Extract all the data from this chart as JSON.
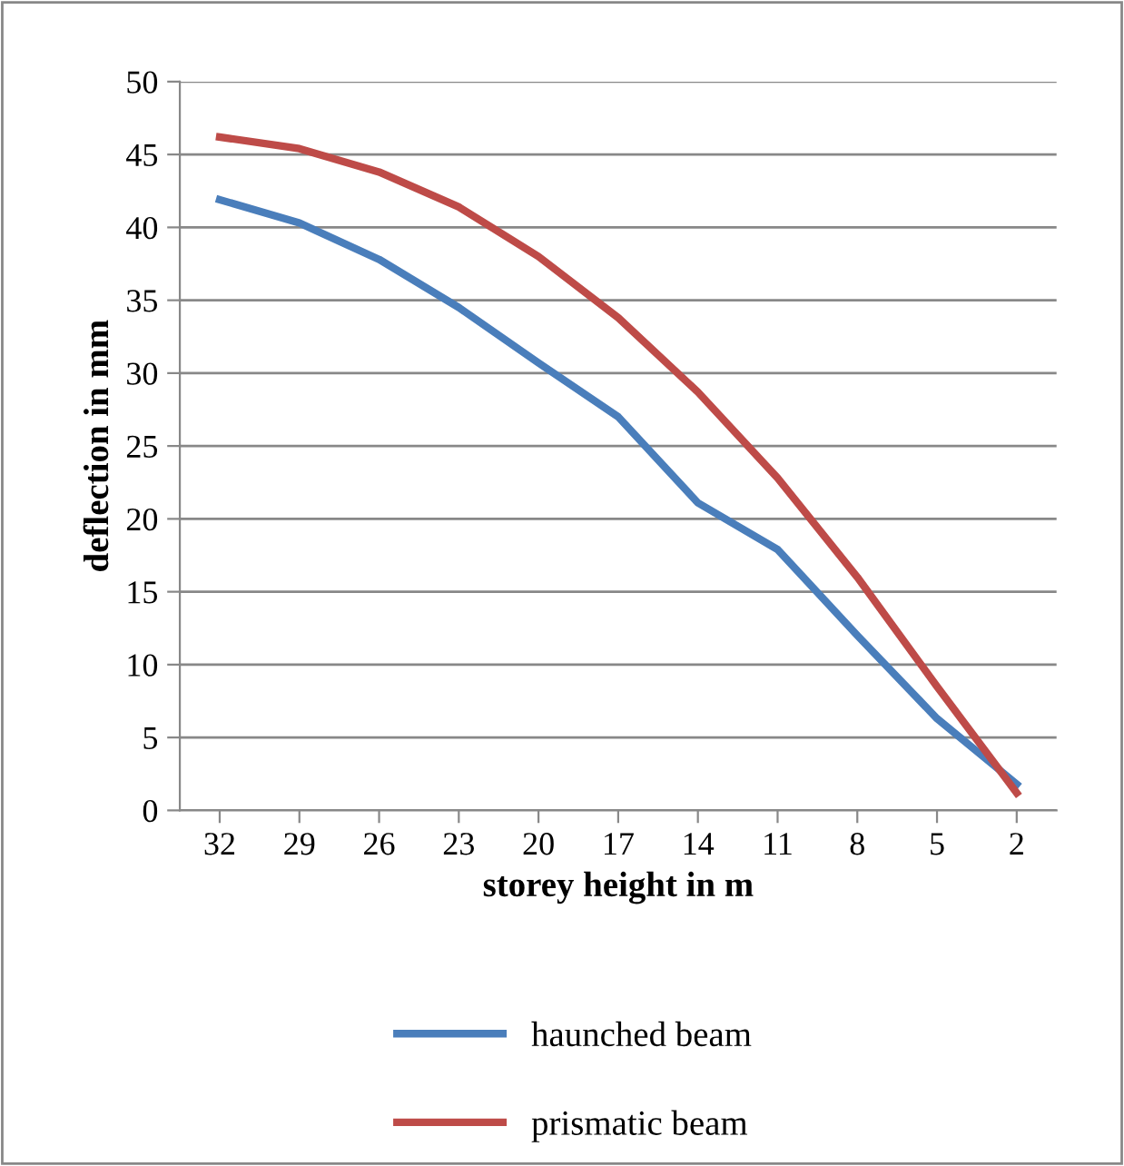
{
  "chart_data": {
    "type": "line",
    "xlabel": "storey height in m",
    "ylabel": "deflection in mm",
    "categories": [
      "32",
      "29",
      "26",
      "23",
      "20",
      "17",
      "14",
      "11",
      "8",
      "5",
      "2"
    ],
    "series": [
      {
        "name": "haunched beam",
        "color": "#4a7ebb",
        "values": [
          41.9,
          40.3,
          37.8,
          34.5,
          30.7,
          27.0,
          21.1,
          17.9,
          12.0,
          6.3,
          1.8
        ]
      },
      {
        "name": "prismatic beam",
        "color": "#be4b48",
        "values": [
          46.2,
          45.4,
          43.8,
          41.4,
          38.0,
          33.8,
          28.7,
          22.8,
          16.0,
          8.5,
          1.2
        ]
      }
    ],
    "ylim": [
      0,
      50
    ],
    "yticks": [
      0,
      5,
      10,
      15,
      20,
      25,
      30,
      35,
      40,
      45,
      50
    ],
    "grid": "y",
    "legend": "bottom",
    "marker": "none",
    "line_style": "solid"
  }
}
